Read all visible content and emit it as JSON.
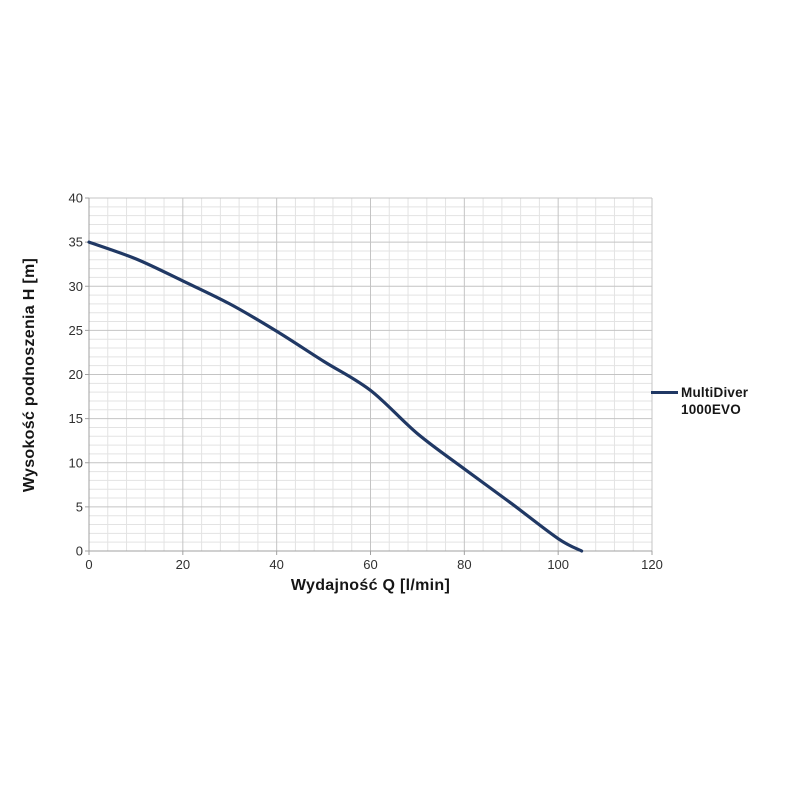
{
  "chart_data": {
    "type": "line",
    "title": "",
    "xlabel": "Wydajność Q [l/min]",
    "ylabel": "Wysokość podnoszenia H [m]",
    "xlim": [
      0,
      120
    ],
    "ylim": [
      0,
      40
    ],
    "x_major": 20,
    "x_minor": 4,
    "y_major": 5,
    "y_minor": 1,
    "x_ticks": [
      0,
      20,
      40,
      60,
      80,
      100,
      120
    ],
    "y_ticks": [
      0,
      5,
      10,
      15,
      20,
      25,
      30,
      35,
      40
    ],
    "grid": true,
    "legend_position": "right",
    "series": [
      {
        "name": "MultiDiver 1000EVO",
        "color": "#203864",
        "points": [
          [
            0,
            35
          ],
          [
            10,
            33.1
          ],
          [
            20,
            30.6
          ],
          [
            30,
            28.0
          ],
          [
            40,
            24.9
          ],
          [
            50,
            21.5
          ],
          [
            60,
            18.2
          ],
          [
            70,
            13.3
          ],
          [
            80,
            9.3
          ],
          [
            90,
            5.4
          ],
          [
            100,
            1.4
          ],
          [
            105,
            0
          ]
        ]
      }
    ]
  },
  "axes": {
    "x_title": "Wydajność Q [l/min]",
    "y_title": "Wysokość podnoszenia H [m]"
  },
  "legend": {
    "line1": "MultiDiver",
    "line2": "1000EVO"
  },
  "colors": {
    "series": "#203864",
    "grid_minor": "#e3e3e3",
    "grid_major": "#c4c4c4",
    "axis": "#a0a0a0",
    "tick_label": "#303030",
    "title": "#161616",
    "background": "#ffffff"
  }
}
